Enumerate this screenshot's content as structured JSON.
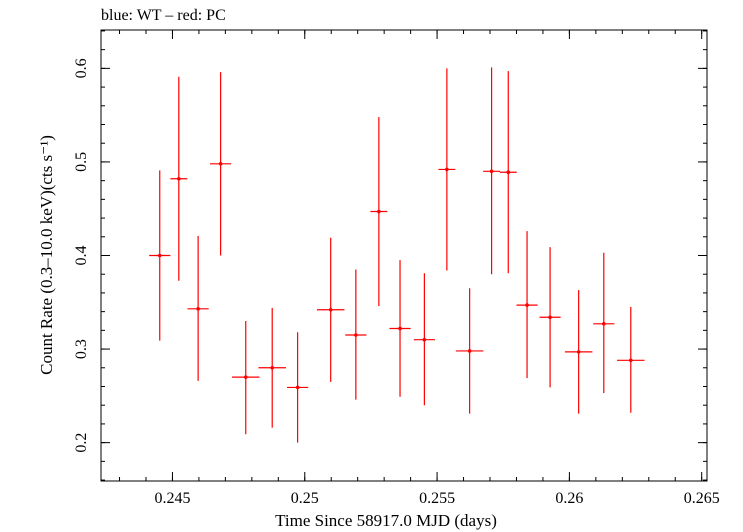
{
  "chart_data": {
    "type": "scatter",
    "title": "blue: WT – red: PC",
    "xlabel": "Time Since 58917.0 MJD (days)",
    "ylabel": "Count Rate (0.3–10.0 keV)(cts s⁻¹)",
    "xlim": [
      0.2423,
      0.2652
    ],
    "ylim": [
      0.159,
      0.641
    ],
    "x_ticks": [
      {
        "value": 0.245,
        "label": "0.245"
      },
      {
        "value": 0.25,
        "label": "0.25"
      },
      {
        "value": 0.255,
        "label": "0.255"
      },
      {
        "value": 0.26,
        "label": "0.26"
      },
      {
        "value": 0.265,
        "label": "0.265"
      }
    ],
    "y_ticks": [
      {
        "value": 0.2,
        "label": "0.2"
      },
      {
        "value": 0.3,
        "label": "0.3"
      },
      {
        "value": 0.4,
        "label": "0.4"
      },
      {
        "value": 0.5,
        "label": "0.5"
      },
      {
        "value": 0.6,
        "label": "0.6"
      }
    ],
    "x_minor_step": 0.001,
    "y_minor_step": 0.02,
    "grid": false,
    "series": [
      {
        "color": "#ff0000",
        "points": [
          {
            "x": 0.24452,
            "y": 0.4,
            "xerr": 0.0004,
            "ylo": 0.309,
            "yhi": 0.491
          },
          {
            "x": 0.24524,
            "y": 0.482,
            "xerr": 0.00032,
            "ylo": 0.373,
            "yhi": 0.591
          },
          {
            "x": 0.24597,
            "y": 0.343,
            "xerr": 0.0004,
            "ylo": 0.266,
            "yhi": 0.421
          },
          {
            "x": 0.24682,
            "y": 0.498,
            "xerr": 0.0004,
            "ylo": 0.4,
            "yhi": 0.596
          },
          {
            "x": 0.24777,
            "y": 0.27,
            "xerr": 0.00052,
            "ylo": 0.209,
            "yhi": 0.33
          },
          {
            "x": 0.24877,
            "y": 0.28,
            "xerr": 0.00052,
            "ylo": 0.216,
            "yhi": 0.344
          },
          {
            "x": 0.24973,
            "y": 0.259,
            "xerr": 0.0004,
            "ylo": 0.2,
            "yhi": 0.318
          },
          {
            "x": 0.25098,
            "y": 0.342,
            "xerr": 0.00052,
            "ylo": 0.265,
            "yhi": 0.419
          },
          {
            "x": 0.25193,
            "y": 0.315,
            "xerr": 0.0004,
            "ylo": 0.246,
            "yhi": 0.385
          },
          {
            "x": 0.2528,
            "y": 0.447,
            "xerr": 0.00032,
            "ylo": 0.346,
            "yhi": 0.548
          },
          {
            "x": 0.2536,
            "y": 0.322,
            "xerr": 0.0004,
            "ylo": 0.249,
            "yhi": 0.395
          },
          {
            "x": 0.25452,
            "y": 0.31,
            "xerr": 0.0004,
            "ylo": 0.24,
            "yhi": 0.381
          },
          {
            "x": 0.25537,
            "y": 0.492,
            "xerr": 0.00032,
            "ylo": 0.384,
            "yhi": 0.6
          },
          {
            "x": 0.25623,
            "y": 0.298,
            "xerr": 0.00052,
            "ylo": 0.231,
            "yhi": 0.365
          },
          {
            "x": 0.25706,
            "y": 0.49,
            "xerr": 0.00032,
            "ylo": 0.38,
            "yhi": 0.601
          },
          {
            "x": 0.25769,
            "y": 0.489,
            "xerr": 0.00032,
            "ylo": 0.381,
            "yhi": 0.597
          },
          {
            "x": 0.2584,
            "y": 0.347,
            "xerr": 0.0004,
            "ylo": 0.269,
            "yhi": 0.426
          },
          {
            "x": 0.25927,
            "y": 0.334,
            "xerr": 0.0004,
            "ylo": 0.259,
            "yhi": 0.409
          },
          {
            "x": 0.26035,
            "y": 0.297,
            "xerr": 0.00052,
            "ylo": 0.231,
            "yhi": 0.363
          },
          {
            "x": 0.2613,
            "y": 0.327,
            "xerr": 0.0004,
            "ylo": 0.253,
            "yhi": 0.403
          },
          {
            "x": 0.26232,
            "y": 0.288,
            "xerr": 0.00052,
            "ylo": 0.232,
            "yhi": 0.345
          }
        ]
      }
    ]
  }
}
